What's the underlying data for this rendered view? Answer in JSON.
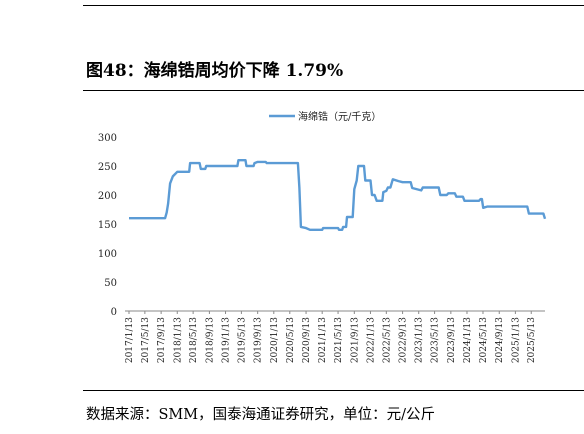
{
  "figure": {
    "title": "图48：海绵锆周均价下降 1.79%",
    "source": "数据来源：SMM，国泰海通证券研究，单位：元/公斤"
  },
  "colors": {
    "series": "#5b9bd5",
    "axis": "#8a8a8a",
    "text": "#222222"
  },
  "chart_data": {
    "type": "line",
    "title": "",
    "xlabel": "",
    "ylabel": "",
    "ylim": [
      0,
      300
    ],
    "yticks": [
      "0",
      "50",
      "100",
      "150",
      "200",
      "250",
      "300"
    ],
    "xticks": [
      "2017/1/13",
      "2017/5/13",
      "2017/9/13",
      "2018/1/13",
      "2018/5/13",
      "2018/9/13",
      "2019/1/13",
      "2019/5/13",
      "2019/9/13",
      "2020/1/13",
      "2020/5/13",
      "2020/9/13",
      "2021/1/13",
      "2021/5/13",
      "2021/9/13",
      "2022/1/13",
      "2022/5/13",
      "2022/9/13",
      "2023/1/13",
      "2023/5/13",
      "2023/9/13",
      "2024/1/13",
      "2024/5/13",
      "2024/9/13",
      "2025/1/13",
      "2025/5/13"
    ],
    "grid": false,
    "legend_position": "top",
    "series": [
      {
        "name": "海绵锆（元/千克）",
        "points": [
          [
            "2017/1/13",
            160
          ],
          [
            "2017/10/13",
            160
          ],
          [
            "2017/10/25",
            170
          ],
          [
            "2017/11/5",
            185
          ],
          [
            "2017/11/20",
            220
          ],
          [
            "2017/12/10",
            232
          ],
          [
            "2018/1/13",
            240
          ],
          [
            "2018/4/13",
            240
          ],
          [
            "2018/4/20",
            255
          ],
          [
            "2018/7/1",
            255
          ],
          [
            "2018/7/10",
            245
          ],
          [
            "2018/8/13",
            245
          ],
          [
            "2018/8/20",
            250
          ],
          [
            "2019/4/13",
            250
          ],
          [
            "2019/4/20",
            260
          ],
          [
            "2019/6/13",
            260
          ],
          [
            "2019/6/20",
            250
          ],
          [
            "2019/8/13",
            250
          ],
          [
            "2019/8/20",
            255
          ],
          [
            "2019/9/13",
            257
          ],
          [
            "2019/11/13",
            257
          ],
          [
            "2019/11/20",
            255
          ],
          [
            "2020/7/13",
            255
          ],
          [
            "2020/7/25",
            212
          ],
          [
            "2020/8/5",
            145
          ],
          [
            "2020/9/13",
            143
          ],
          [
            "2020/10/13",
            140
          ],
          [
            "2021/1/13",
            140
          ],
          [
            "2021/1/20",
            143
          ],
          [
            "2021/5/13",
            143
          ],
          [
            "2021/5/20",
            140
          ],
          [
            "2021/6/13",
            140
          ],
          [
            "2021/6/20",
            145
          ],
          [
            "2021/7/13",
            145
          ],
          [
            "2021/7/20",
            162
          ],
          [
            "2021/9/1",
            162
          ],
          [
            "2021/9/13",
            210
          ],
          [
            "2021/10/1",
            225
          ],
          [
            "2021/10/13",
            250
          ],
          [
            "2021/11/25",
            250
          ],
          [
            "2021/12/5",
            225
          ],
          [
            "2022/1/13",
            225
          ],
          [
            "2022/1/25",
            200
          ],
          [
            "2022/2/13",
            200
          ],
          [
            "2022/3/1",
            190
          ],
          [
            "2022/4/13",
            190
          ],
          [
            "2022/4/20",
            205
          ],
          [
            "2022/5/13",
            207
          ],
          [
            "2022/5/25",
            213
          ],
          [
            "2022/6/13",
            213
          ],
          [
            "2022/7/1",
            227
          ],
          [
            "2022/8/13",
            224
          ],
          [
            "2022/9/13",
            222
          ],
          [
            "2022/11/13",
            222
          ],
          [
            "2022/11/25",
            212
          ],
          [
            "2023/2/1",
            208
          ],
          [
            "2023/2/13",
            213
          ],
          [
            "2023/6/13",
            213
          ],
          [
            "2023/6/25",
            200
          ],
          [
            "2023/8/13",
            200
          ],
          [
            "2023/8/25",
            203
          ],
          [
            "2023/10/13",
            203
          ],
          [
            "2023/10/25",
            197
          ],
          [
            "2023/12/13",
            197
          ],
          [
            "2023/12/25",
            190
          ],
          [
            "2024/4/13",
            190
          ],
          [
            "2024/4/25",
            193
          ],
          [
            "2024/5/5",
            193
          ],
          [
            "2024/5/15",
            178
          ],
          [
            "2024/6/13",
            180
          ],
          [
            "2025/4/13",
            180
          ],
          [
            "2025/4/25",
            168
          ],
          [
            "2025/8/13",
            168
          ],
          [
            "2025/8/25",
            159
          ]
        ]
      }
    ]
  }
}
